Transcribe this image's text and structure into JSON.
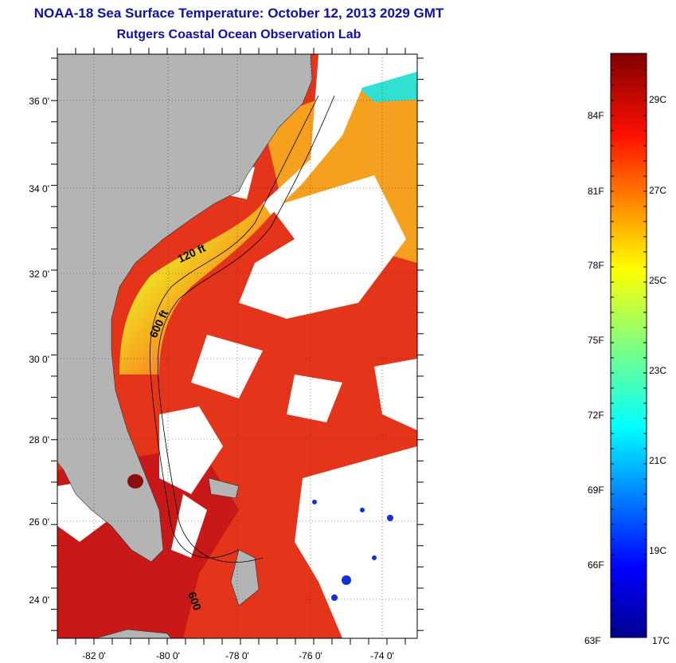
{
  "title": "NOAA-18 Sea Surface Temperature:  October 12, 2013 2029 GMT",
  "subtitle": "Rutgers Coastal Ocean Observation Lab",
  "map": {
    "lat_labels": [
      "36 0'",
      "34 0'",
      "32 0'",
      "30 0'",
      "28 0'",
      "26 0'",
      "24 0'"
    ],
    "lon_labels": [
      "-82 0'",
      "-80 0'",
      "-78 0'",
      "-76 0'",
      "-74 0'"
    ],
    "contour_labels": [
      "120 ft",
      "600 ft",
      "600"
    ],
    "colors": {
      "land": "#b4b4b4",
      "clouds": "#ffffff",
      "warm_water": "#e83018"
    }
  },
  "colorbar": {
    "fahrenheit_labels": [
      "84F",
      "81F",
      "78F",
      "75F",
      "72F",
      "69F",
      "66F",
      "63F"
    ],
    "celsius_labels": [
      "29C",
      "27C",
      "25C",
      "23C",
      "21C",
      "19C",
      "17C"
    ],
    "range_c": [
      17,
      30
    ],
    "colormap": "jet"
  }
}
